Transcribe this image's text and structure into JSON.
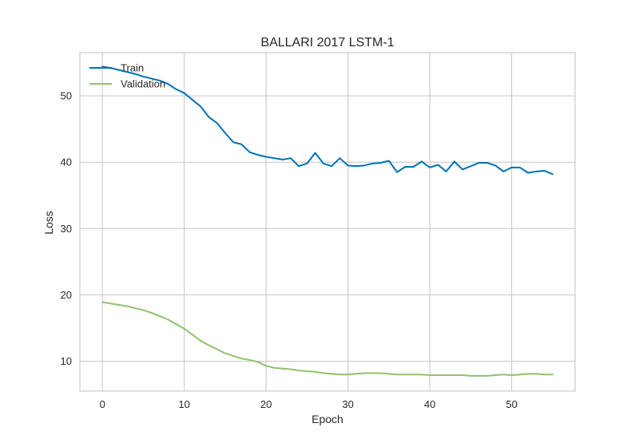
{
  "chart_data": {
    "type": "line",
    "title": "BALLARI 2017 LSTM-1",
    "xlabel": "Epoch",
    "ylabel": "Loss",
    "xlim": [
      -2.75,
      57.75
    ],
    "ylim": [
      5.5,
      56.5
    ],
    "xticks": [
      0,
      10,
      20,
      30,
      40,
      50
    ],
    "yticks": [
      10,
      20,
      30,
      40,
      50
    ],
    "grid": true,
    "legend_position": "top-left",
    "series": [
      {
        "name": "Train",
        "color": "#0072b2",
        "x": [
          0,
          1,
          2,
          3,
          4,
          5,
          6,
          7,
          8,
          9,
          10,
          11,
          12,
          13,
          14,
          15,
          16,
          17,
          18,
          19,
          20,
          21,
          22,
          23,
          24,
          25,
          26,
          27,
          28,
          29,
          30,
          31,
          32,
          33,
          34,
          35,
          36,
          37,
          38,
          39,
          40,
          41,
          42,
          43,
          44,
          45,
          46,
          47,
          48,
          49,
          50,
          51,
          52,
          53,
          54,
          55
        ],
        "values": [
          54.4,
          54.2,
          53.9,
          53.6,
          53.3,
          52.9,
          52.6,
          52.3,
          51.8,
          51.0,
          50.4,
          49.4,
          48.4,
          46.8,
          45.9,
          44.4,
          43.0,
          42.7,
          41.5,
          41.1,
          40.8,
          40.6,
          40.4,
          40.6,
          39.4,
          39.8,
          41.4,
          39.8,
          39.4,
          40.6,
          39.5,
          39.4,
          39.5,
          39.8,
          39.9,
          40.2,
          38.5,
          39.3,
          39.3,
          40.1,
          39.2,
          39.6,
          38.6,
          40.1,
          38.9,
          39.4,
          39.9,
          39.9,
          39.5,
          38.6,
          39.2,
          39.2,
          38.4,
          38.6,
          38.7,
          38.2
        ]
      },
      {
        "name": "Validation",
        "color": "#8fc26a",
        "x": [
          0,
          1,
          2,
          3,
          4,
          5,
          6,
          7,
          8,
          9,
          10,
          11,
          12,
          13,
          14,
          15,
          16,
          17,
          18,
          19,
          20,
          21,
          22,
          23,
          24,
          25,
          26,
          27,
          28,
          29,
          30,
          31,
          32,
          33,
          34,
          35,
          36,
          37,
          38,
          39,
          40,
          41,
          42,
          43,
          44,
          45,
          46,
          47,
          48,
          49,
          50,
          51,
          52,
          53,
          54,
          55
        ],
        "values": [
          18.9,
          18.7,
          18.5,
          18.3,
          18.0,
          17.7,
          17.3,
          16.8,
          16.3,
          15.6,
          14.9,
          14.0,
          13.1,
          12.4,
          11.8,
          11.2,
          10.8,
          10.4,
          10.2,
          9.9,
          9.3,
          9.0,
          8.9,
          8.8,
          8.6,
          8.5,
          8.4,
          8.2,
          8.1,
          8.0,
          8.0,
          8.1,
          8.2,
          8.2,
          8.2,
          8.1,
          8.0,
          8.0,
          8.0,
          8.0,
          7.9,
          7.9,
          7.9,
          7.9,
          7.9,
          7.8,
          7.8,
          7.8,
          7.9,
          8.0,
          7.9,
          8.0,
          8.1,
          8.1,
          8.0,
          8.0
        ]
      }
    ]
  }
}
